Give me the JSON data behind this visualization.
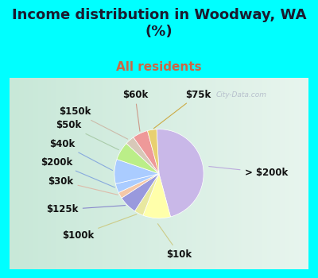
{
  "title": "Income distribution in Woodway, WA\n(%)",
  "subtitle": "All residents",
  "outer_bg": "#00FFFF",
  "chart_bg": "#d8ede0",
  "watermark": "City-Data.com",
  "slices": [
    {
      "label": "> $200k",
      "value": 42,
      "color": "#c9b8e8"
    },
    {
      "label": "$10k",
      "value": 9,
      "color": "#ffffaa"
    },
    {
      "label": "$100k",
      "value": 3,
      "color": "#e8e8a0"
    },
    {
      "label": "$125k",
      "value": 6,
      "color": "#9999dd"
    },
    {
      "label": "$30k",
      "value": 2,
      "color": "#f5c8a8"
    },
    {
      "label": "$200k",
      "value": 3,
      "color": "#aaccff"
    },
    {
      "label": "$40k",
      "value": 8,
      "color": "#aaccff"
    },
    {
      "label": "$50k",
      "value": 6,
      "color": "#bbee88"
    },
    {
      "label": "$150k",
      "value": 3,
      "color": "#d8c8b8"
    },
    {
      "label": "$60k",
      "value": 5,
      "color": "#ee9999"
    },
    {
      "label": "$75k",
      "value": 3,
      "color": "#e8d070"
    }
  ],
  "title_fontsize": 13,
  "subtitle_fontsize": 11,
  "label_fontsize": 8.5
}
